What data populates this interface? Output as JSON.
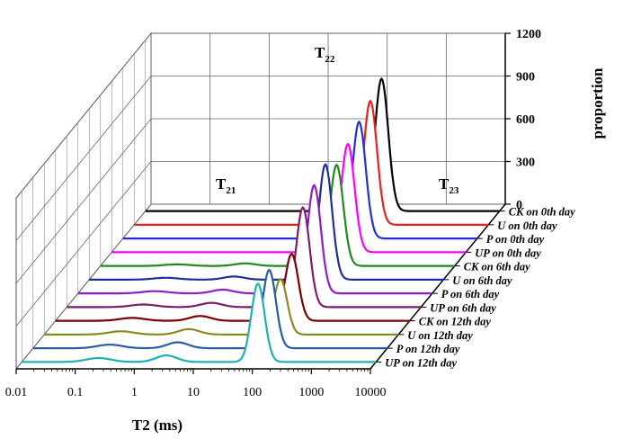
{
  "chart_data": {
    "type": "line",
    "title": "",
    "xlabel": "T2 (ms)",
    "zlabel": "proportion",
    "x_scale": "log",
    "x_ticks": [
      "0.01",
      "0.1",
      "1",
      "10",
      "100",
      "1000",
      "10000"
    ],
    "x_tick_values": [
      0.01,
      0.1,
      1,
      10,
      100,
      1000,
      10000
    ],
    "zlim": [
      0,
      1200
    ],
    "z_ticks": [
      "0",
      "300",
      "600",
      "900",
      "1200"
    ],
    "z_tick_values": [
      0,
      300,
      600,
      900,
      1200
    ],
    "peak_labels": [
      {
        "main": "T",
        "sub": "21"
      },
      {
        "main": "T",
        "sub": "22"
      },
      {
        "main": "T",
        "sub": "23"
      }
    ],
    "series": [
      {
        "name": "CK on 0th day",
        "color": "#000000",
        "peak_t2": 100,
        "peak": 930,
        "width": 0.16
      },
      {
        "name": "U on 0th day",
        "color": "#e8201e",
        "peak_t2": 100,
        "peak": 870,
        "width": 0.16
      },
      {
        "name": "P on 0th day",
        "color": "#2030e0",
        "peak_t2": 100,
        "peak": 820,
        "width": 0.16
      },
      {
        "name": "UP on 0th day",
        "color": "#ff00ff",
        "peak_t2": 100,
        "peak": 760,
        "width": 0.16
      },
      {
        "name": "CK on 6th day",
        "color": "#1e8a1e",
        "peak_t2": 100,
        "peak": 710,
        "width": 0.16
      },
      {
        "name": "U on 6th day",
        "color": "#1e2f9a",
        "peak_t2": 100,
        "peak": 810,
        "width": 0.16
      },
      {
        "name": "P on 6th day",
        "color": "#8a1ec8",
        "peak_t2": 100,
        "peak": 760,
        "width": 0.16
      },
      {
        "name": "UP on 6th day",
        "color": "#7a1e6a",
        "peak_t2": 100,
        "peak": 700,
        "width": 0.16
      },
      {
        "name": "CK on 12th day",
        "color": "#7a0000",
        "peak_t2": 100,
        "peak": 470,
        "width": 0.16
      },
      {
        "name": "U on 12th day",
        "color": "#8a8a1e",
        "peak_t2": 100,
        "peak": 390,
        "width": 0.16
      },
      {
        "name": "P on 12th day",
        "color": "#2a5aa8",
        "peak_t2": 100,
        "peak": 550,
        "width": 0.16
      },
      {
        "name": "UP on 12th day",
        "color": "#20b0b0",
        "peak_t2": 100,
        "peak": 550,
        "width": 0.16
      }
    ]
  }
}
